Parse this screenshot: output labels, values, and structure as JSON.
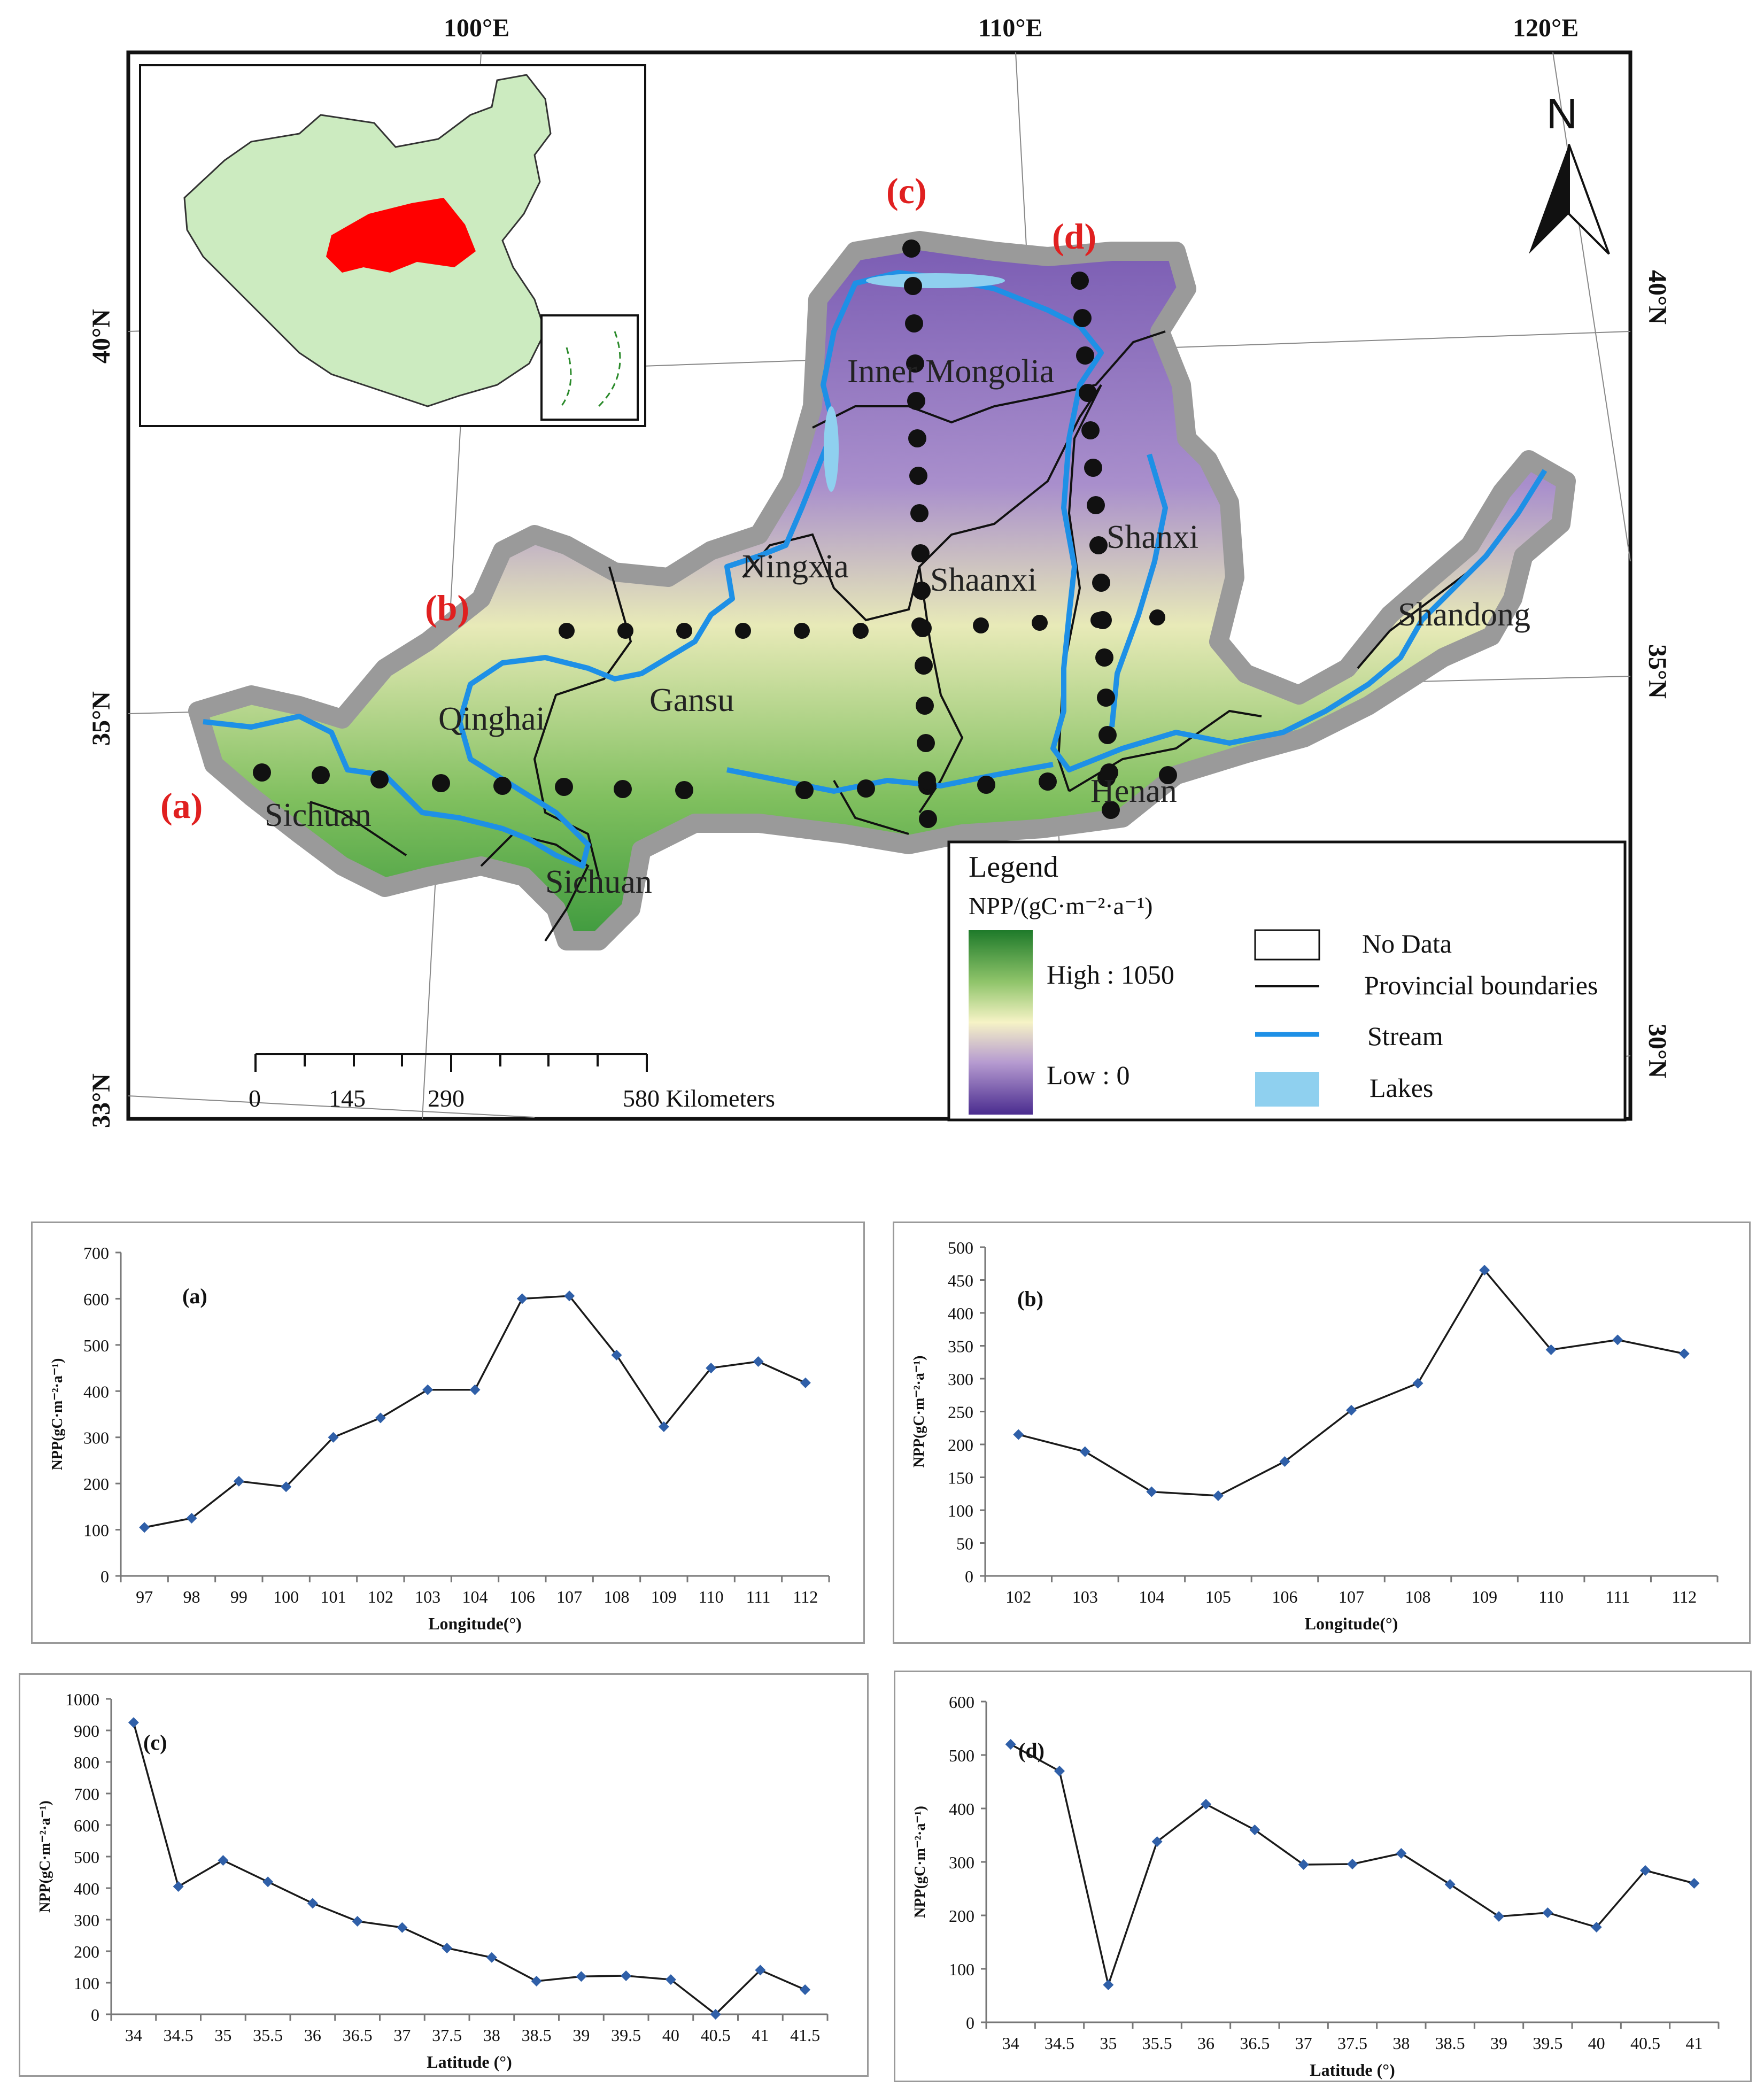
{
  "map": {
    "lon_labels": [
      "100°E",
      "110°E",
      "120°E"
    ],
    "lat_labels": [
      "40°N",
      "35°N",
      "33°N",
      "30°N"
    ],
    "north_label": "N",
    "transect_labels": [
      "(a)",
      "(b)",
      "(c)",
      "(d)"
    ],
    "region_labels": [
      "Inner Mongolia",
      "Ningxia",
      "Shaanxi",
      "Shanxi",
      "Gansu",
      "Qinghai",
      "Sichuan",
      "Sichuan",
      "Henan",
      "Shandong"
    ],
    "scale_bar": {
      "ticks": [
        "0",
        "145",
        "290",
        "580 Kilometers"
      ]
    },
    "legend": {
      "title": "Legend",
      "npp_label": "NPP/(gC·m⁻²·a⁻¹)",
      "high_label": "High : 1050",
      "low_label": "Low :   0",
      "items": [
        "No Data",
        "Provincial boundaries",
        "Stream",
        "Lakes"
      ]
    },
    "colors": {
      "high": "#1e7a2a",
      "mid": "#f6f3c6",
      "low": "#4a2c8f",
      "stream": "#1e90e6",
      "lake": "#8fd0ef",
      "highlight": "#ff0000",
      "china": "#ccebc0"
    }
  },
  "chart_data": [
    {
      "id": "a",
      "type": "line",
      "label": "(a)",
      "categories": [
        "97",
        "98",
        "99",
        "100",
        "101",
        "102",
        "103",
        "104",
        "106",
        "107",
        "108",
        "109",
        "110",
        "111",
        "112"
      ],
      "values": [
        105,
        125,
        205,
        193,
        300,
        342,
        403,
        403,
        600,
        606,
        478,
        323,
        450,
        464,
        418
      ],
      "ylim": [
        0,
        700
      ],
      "yticks": [
        "0",
        "100",
        "200",
        "300",
        "400",
        "500",
        "600",
        "700"
      ],
      "xlabel": "Longitude(°)",
      "ylabel": "NPP(gC·m⁻²·a⁻¹)"
    },
    {
      "id": "b",
      "type": "line",
      "label": "(b)",
      "categories": [
        "102",
        "103",
        "104",
        "105",
        "106",
        "107",
        "108",
        "109",
        "110",
        "111",
        "112"
      ],
      "values": [
        215,
        189,
        128,
        122,
        174,
        252,
        293,
        465,
        344,
        359,
        338
      ],
      "ylim": [
        0,
        500
      ],
      "yticks": [
        "0",
        "50",
        "100",
        "150",
        "200",
        "250",
        "300",
        "350",
        "400",
        "450",
        "500"
      ],
      "xlabel": "Longitude(°)",
      "ylabel": "NPP(gC·m⁻²·a⁻¹)"
    },
    {
      "id": "c",
      "type": "line",
      "label": "(c)",
      "categories": [
        "34",
        "34.5",
        "35",
        "35.5",
        "36",
        "36.5",
        "37",
        "37.5",
        "38",
        "38.5",
        "39",
        "39.5",
        "40",
        "40.5",
        "41",
        "41.5"
      ],
      "values": [
        925,
        405,
        488,
        420,
        352,
        295,
        275,
        210,
        180,
        105,
        120,
        122,
        110,
        0,
        140,
        78
      ],
      "ylim": [
        0,
        1000
      ],
      "yticks": [
        "0",
        "100",
        "200",
        "300",
        "400",
        "500",
        "600",
        "700",
        "800",
        "900",
        "1000"
      ],
      "xlabel": "Latitude (°)",
      "ylabel": "NPP(gC·m⁻²·a⁻¹)"
    },
    {
      "id": "d",
      "type": "line",
      "label": "(d)",
      "categories": [
        "34",
        "34.5",
        "35",
        "35.5",
        "36",
        "36.5",
        "37",
        "37.5",
        "38",
        "38.5",
        "39",
        "39.5",
        "40",
        "40.5",
        "41"
      ],
      "values": [
        520,
        470,
        70,
        338,
        408,
        360,
        295,
        296,
        316,
        258,
        198,
        205,
        178,
        284,
        260
      ],
      "ylim": [
        0,
        600
      ],
      "yticks": [
        "0",
        "100",
        "200",
        "300",
        "400",
        "500",
        "600"
      ],
      "xlabel": "Latitude (°)",
      "ylabel": "NPP(gC·m⁻²·a⁻¹)"
    }
  ]
}
